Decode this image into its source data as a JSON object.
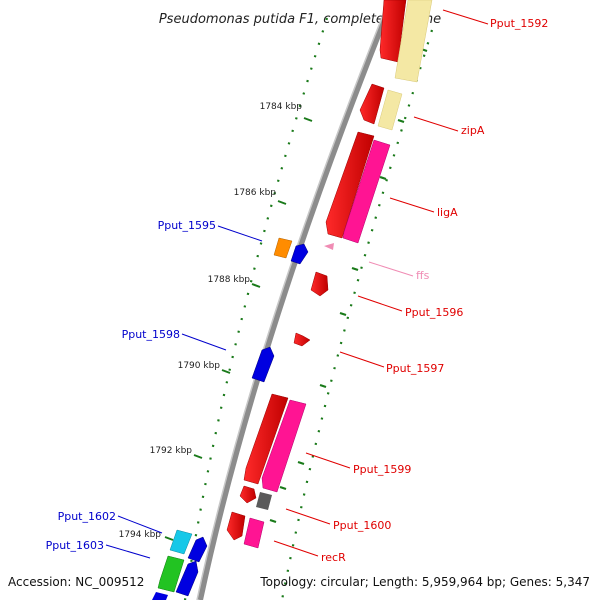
{
  "title": "Pseudomonas putida F1, complete genome",
  "footer": {
    "accession": "Accession: NC_009512",
    "summary": "Topology: circular; Length: 5,959,964 bp; Genes: 5,347"
  },
  "colors": {
    "backbone": "#8c8c8c",
    "tick": "#1a7a1a",
    "label_right": "#e00000",
    "label_left": "#0000cc",
    "label_rna": "#f08cb4"
  },
  "ticks": [
    "1784 kbp",
    "1786 kbp",
    "1788 kbp",
    "1790 kbp",
    "1792 kbp",
    "1794 kbp"
  ],
  "genes": [
    {
      "label": "Pput_1592",
      "color": "#e00000"
    },
    {
      "label": "zipA",
      "color": "#e00000"
    },
    {
      "label": "ligA",
      "color": "#e00000"
    },
    {
      "label": "Pput_1595",
      "color": "#0000cc"
    },
    {
      "label": "ffs",
      "color": "#f08cb4"
    },
    {
      "label": "Pput_1596",
      "color": "#e00000"
    },
    {
      "label": "Pput_1598",
      "color": "#0000cc"
    },
    {
      "label": "Pput_1597",
      "color": "#e00000"
    },
    {
      "label": "Pput_1599",
      "color": "#e00000"
    },
    {
      "label": "Pput_1600",
      "color": "#e00000"
    },
    {
      "label": "Pput_1602",
      "color": "#0000cc"
    },
    {
      "label": "Pput_1603",
      "color": "#0000cc"
    },
    {
      "label": "recR",
      "color": "#e00000"
    }
  ]
}
